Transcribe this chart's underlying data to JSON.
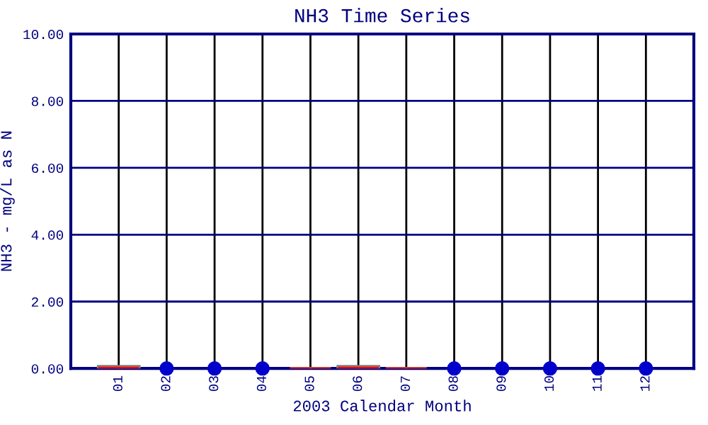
{
  "chart_data": {
    "type": "box",
    "title": "NH3 Time Series",
    "xlabel": "2003 Calendar Month",
    "ylabel": "NH3 - mg/L as N",
    "categories": [
      "01",
      "02",
      "03",
      "04",
      "05",
      "06",
      "07",
      "08",
      "09",
      "10",
      "11",
      "12"
    ],
    "ylim": [
      0,
      10
    ],
    "yticks": [
      {
        "value": 0,
        "label": "0.00"
      },
      {
        "value": 2,
        "label": "2.00"
      },
      {
        "value": 4,
        "label": "4.00"
      },
      {
        "value": 6,
        "label": "6.00"
      },
      {
        "value": 8,
        "label": "8.00"
      },
      {
        "value": 10,
        "label": "10.00"
      }
    ],
    "grid": true,
    "series": [
      {
        "color": "#808080",
        "boxes": [
          {
            "low": 0,
            "q1": 0,
            "median": 0.02,
            "q3": 0.06,
            "high": 0.06
          },
          null,
          null,
          null,
          {
            "low": 0,
            "q1": 0,
            "median": 0,
            "q3": 0,
            "high": 0
          },
          {
            "low": 0,
            "q1": 0,
            "median": 0.02,
            "q3": 0.06,
            "high": 0.06
          },
          {
            "low": 0,
            "q1": 0,
            "median": 0,
            "q3": 0,
            "high": 0
          },
          null,
          null,
          null,
          null,
          null
        ]
      },
      {
        "type": "scatter",
        "color": "#0000cc",
        "marker": "circle",
        "values": [
          null,
          0,
          0,
          0,
          null,
          null,
          null,
          0,
          0,
          0,
          0,
          0
        ]
      }
    ]
  }
}
